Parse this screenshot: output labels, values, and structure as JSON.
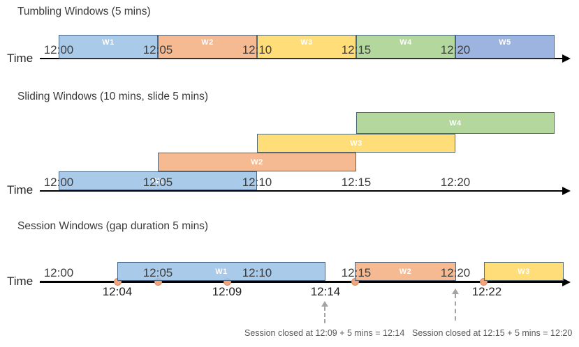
{
  "colors": {
    "blue": "#9DC3E6",
    "orange": "#F4B183",
    "yellow": "#FFD966",
    "green": "#A9D18E",
    "blue2": "#8FAADC",
    "axis": "#000000",
    "dot": "#F2A47C",
    "annotation_gray": "#595959"
  },
  "sections": [
    {
      "title": "Tumbling Windows (5 mins)",
      "time_label": "Time",
      "ticks": [
        "12:00",
        "12:05",
        "12:10",
        "12:15",
        "12:20"
      ],
      "windows": [
        {
          "label": "W1",
          "color": "blue"
        },
        {
          "label": "W2",
          "color": "orange"
        },
        {
          "label": "W3",
          "color": "yellow"
        },
        {
          "label": "W4",
          "color": "green"
        },
        {
          "label": "W5",
          "color": "blue2"
        }
      ]
    },
    {
      "title": "Sliding Windows (10 mins, slide 5 mins)",
      "time_label": "Time",
      "ticks": [
        "12:00",
        "12:05",
        "12:10",
        "12:15",
        "12:20"
      ],
      "windows": [
        {
          "label": "W1",
          "color": "blue"
        },
        {
          "label": "W2",
          "color": "orange"
        },
        {
          "label": "W3",
          "color": "yellow"
        },
        {
          "label": "W4",
          "color": "green"
        }
      ]
    },
    {
      "title": "Session Windows (gap duration 5 mins)",
      "time_label": "Time",
      "ticks": [
        "12:00",
        "12:05",
        "12:10",
        "12:15",
        "12:20"
      ],
      "windows": [
        {
          "label": "W1",
          "color": "blue"
        },
        {
          "label": "W2",
          "color": "orange"
        },
        {
          "label": "W3",
          "color": "yellow"
        }
      ],
      "event_labels": [
        "12:04",
        "12:09",
        "12:14",
        "12:22"
      ],
      "annotations": [
        "Session closed at 12:09 + 5 mins = 12:14",
        "Session closed at 12:15 + 5 mins = 12:20"
      ]
    }
  ]
}
